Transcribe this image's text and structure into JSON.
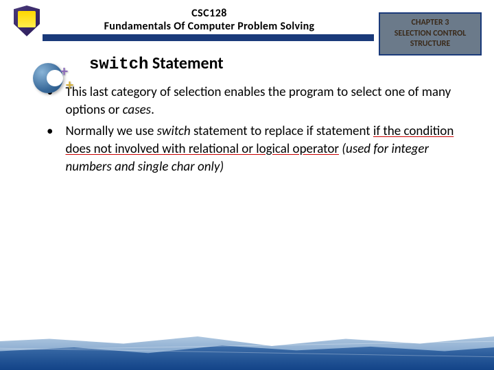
{
  "header": {
    "course_code": "CSC128",
    "course_name": "Fundamentals Of Computer Problem Solving"
  },
  "chapter": {
    "line1": "CHAPTER 3",
    "line2": "SELECTION CONTROL",
    "line3": "STRUCTURE"
  },
  "slide": {
    "title_mono": "switch",
    "title_rest": " Statement"
  },
  "bullets": [
    {
      "pre": "This last category of selection enables the program to select one of many options or ",
      "italic1": "cases",
      "post1": "."
    },
    {
      "pre": "Normally we use ",
      "italic1": "switch",
      "mid1": " statement to replace if statement ",
      "underline": "if the condition does not involved with relational or logical operator",
      "post1": " ",
      "italic2": "(used for integer numbers and single char only)"
    }
  ],
  "colors": {
    "blue_bar": "#1a3a7a",
    "chapter_bg": "#6b7a8a",
    "underline": "#c00"
  }
}
